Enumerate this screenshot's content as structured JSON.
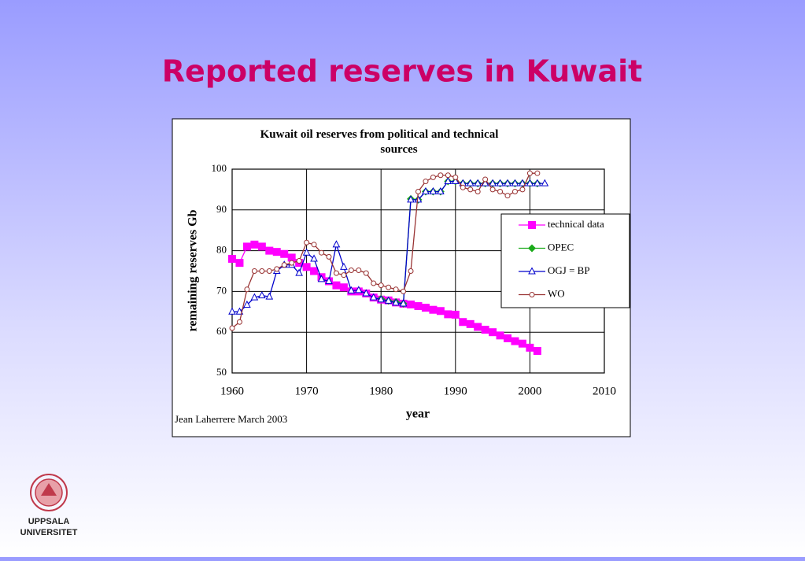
{
  "slide": {
    "title": "Reported reserves in Kuwait",
    "logo": [
      "UPPSALA",
      "UNIVERSITET"
    ]
  },
  "chart_data": {
    "type": "line",
    "title": "Kuwait oil reserves from political and technical sources",
    "x_label": "year",
    "y_label": "remaining reserves Gb",
    "note": "Jean Laherrere March 2003",
    "x": [
      1960,
      1961,
      1962,
      1963,
      1964,
      1965,
      1966,
      1967,
      1968,
      1969,
      1970,
      1971,
      1972,
      1973,
      1974,
      1975,
      1976,
      1977,
      1978,
      1979,
      1980,
      1981,
      1982,
      1983,
      1984,
      1985,
      1986,
      1987,
      1988,
      1989,
      1990,
      1991,
      1992,
      1993,
      1994,
      1995,
      1996,
      1997,
      1998,
      1999,
      2000,
      2001,
      2002
    ],
    "series": [
      {
        "name": "technical data",
        "color": "#ff00ff",
        "marker": "square",
        "values": [
          78,
          77,
          81,
          81.5,
          81,
          80,
          79.7,
          79.2,
          78.3,
          77,
          76,
          75,
          73.5,
          72.5,
          71.5,
          71,
          70,
          70,
          69.5,
          68.5,
          68,
          67.8,
          67.3,
          67,
          66.8,
          66.4,
          66,
          65.5,
          65.2,
          64.4,
          64.3,
          62.5,
          62,
          61.3,
          60.6,
          60,
          59.2,
          58.5,
          57.8,
          57.2,
          56.2,
          55.4,
          null
        ]
      },
      {
        "name": "OPEC",
        "color": "#1aaa1a",
        "marker": "diamond",
        "values": [
          null,
          null,
          null,
          null,
          null,
          null,
          null,
          null,
          null,
          null,
          null,
          null,
          null,
          null,
          null,
          null,
          null,
          null,
          null,
          null,
          68.2,
          67.7,
          67.4,
          67,
          92.7,
          92.5,
          94.5,
          94.5,
          94.5,
          97,
          97,
          96.5,
          96.5,
          96.5,
          96.5,
          96.5,
          96.5,
          96.5,
          96.5,
          96.5,
          96.5,
          96.5,
          null
        ]
      },
      {
        "name": "OGJ = BP",
        "color": "#0000cc",
        "marker": "triangle",
        "values": [
          65,
          65,
          66.7,
          68.5,
          69,
          68.7,
          75,
          76.5,
          76.5,
          74.5,
          79.5,
          78,
          73,
          72.5,
          81.5,
          76,
          70.2,
          70.3,
          69.5,
          68.5,
          68,
          67.7,
          67.2,
          67,
          92.5,
          92.5,
          94.5,
          94.5,
          94.5,
          97,
          97,
          96.5,
          96.5,
          96.5,
          96.5,
          96.5,
          96.5,
          96.5,
          96.5,
          96.5,
          96.5,
          96.5,
          96.5
        ]
      },
      {
        "name": "WO",
        "color": "#993333",
        "marker": "circle",
        "values": [
          61,
          62.5,
          70.5,
          75,
          75,
          75,
          75.5,
          76.5,
          77,
          77.5,
          82,
          81.5,
          79.5,
          78.5,
          74.5,
          74,
          75.2,
          75.2,
          74.5,
          72,
          71.5,
          71,
          70.5,
          70,
          75,
          94.5,
          97,
          98,
          98.5,
          98.5,
          98,
          95.5,
          95,
          94.5,
          97.5,
          95,
          94.5,
          93.5,
          94.5,
          95,
          99,
          99,
          null
        ]
      }
    ],
    "xlim": [
      1960,
      2010
    ],
    "xticks": [
      1960,
      1970,
      1980,
      1990,
      2000,
      2010
    ],
    "ylim": [
      50,
      100
    ],
    "yticks": [
      50,
      60,
      70,
      80,
      90,
      100
    ],
    "grid": true,
    "legend": "right"
  }
}
